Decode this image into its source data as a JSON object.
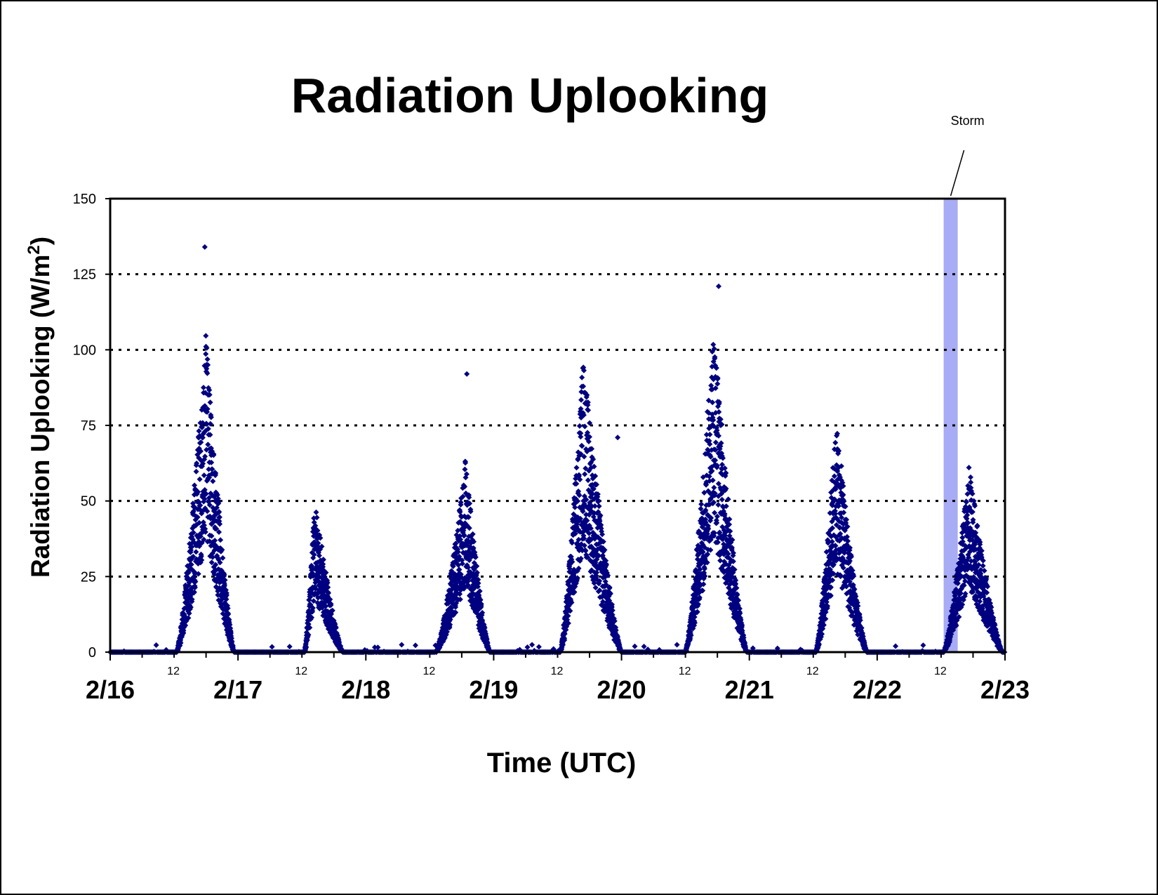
{
  "chart_data": {
    "type": "scatter",
    "title": "Radiation Uplooking",
    "xlabel": "Time (UTC)",
    "ylabel_text": "Radiation Uplooking (W/m",
    "ylabel_sup": "2",
    "ylabel_close": ")",
    "ylim": [
      0,
      150
    ],
    "yticks": [
      0,
      25,
      50,
      75,
      100,
      125,
      150
    ],
    "grid_y": [
      25,
      50,
      75,
      100,
      125
    ],
    "xlim_days": [
      0,
      7
    ],
    "x_major_ticks": [
      "2/16",
      "2/17",
      "2/18",
      "2/19",
      "2/20",
      "2/21",
      "2/22",
      "2/23"
    ],
    "x_minor_label": "12",
    "marker_color": "#000080",
    "storm_band_color": "#a8acf4",
    "annotation": {
      "text": "Storm",
      "x_start": "2/22 12:30",
      "x_end": "2/22 15:00",
      "days": [
        6.52,
        6.63
      ]
    },
    "series": [
      {
        "marker": "diamond",
        "peaks": [
          {
            "day": "2/16",
            "start": 0.52,
            "peak": 0.75,
            "end": 0.97,
            "max": 106,
            "outliers": [
              [
                0.74,
                134
              ]
            ]
          },
          {
            "day": "2/17",
            "start": 1.52,
            "peak": 1.6,
            "end": 1.82,
            "max": 51,
            "outliers": []
          },
          {
            "day": "2/18",
            "start": 2.55,
            "peak": 2.78,
            "end": 2.97,
            "max": 64,
            "outliers": [
              [
                2.79,
                92
              ]
            ]
          },
          {
            "day": "2/19",
            "start": 3.52,
            "peak": 3.7,
            "end": 4.0,
            "max": 99,
            "outliers": [
              [
                3.97,
                71
              ]
            ]
          },
          {
            "day": "2/20",
            "start": 4.5,
            "peak": 4.72,
            "end": 4.98,
            "max": 110,
            "outliers": [
              [
                4.76,
                121
              ]
            ]
          },
          {
            "day": "2/21",
            "start": 5.52,
            "peak": 5.68,
            "end": 5.92,
            "max": 78,
            "outliers": []
          },
          {
            "day": "2/22",
            "start": 6.52,
            "peak": 6.72,
            "end": 6.98,
            "max": 62,
            "outliers": []
          }
        ]
      }
    ]
  }
}
